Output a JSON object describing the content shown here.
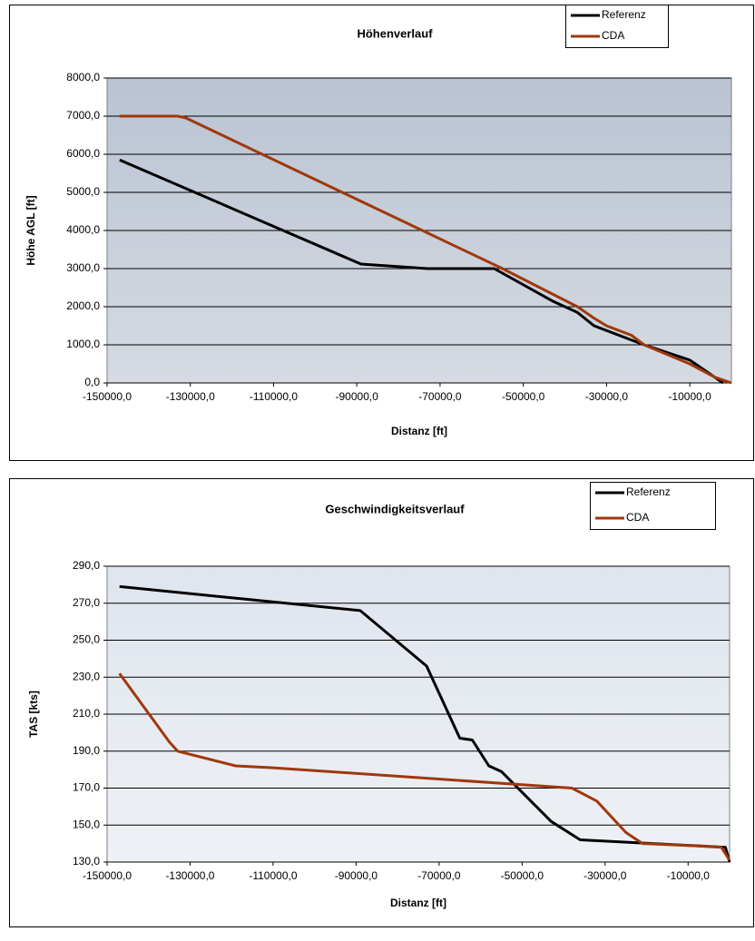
{
  "chart_data": [
    {
      "type": "line",
      "title": "Höhenverlauf",
      "x_label": "Distanz [ft]",
      "y_label": "Höhe AGL [ft]",
      "xlim": [
        -150000,
        0
      ],
      "ylim": [
        0,
        8000
      ],
      "xticks": [
        {
          "value": -150000,
          "label": "-150000,0"
        },
        {
          "value": -130000,
          "label": "-130000,0"
        },
        {
          "value": -110000,
          "label": "-110000,0"
        },
        {
          "value": -90000,
          "label": "-90000,0"
        },
        {
          "value": -70000,
          "label": "-70000,0"
        },
        {
          "value": -50000,
          "label": "-50000,0"
        },
        {
          "value": -30000,
          "label": "-30000,0"
        },
        {
          "value": -10000,
          "label": "-10000,0"
        }
      ],
      "yticks": [
        {
          "value": 0,
          "label": "0,0"
        },
        {
          "value": 1000,
          "label": "1000,0"
        },
        {
          "value": 2000,
          "label": "2000,0"
        },
        {
          "value": 3000,
          "label": "3000,0"
        },
        {
          "value": 4000,
          "label": "4000,0"
        },
        {
          "value": 5000,
          "label": "5000,0"
        },
        {
          "value": 6000,
          "label": "6000,0"
        },
        {
          "value": 7000,
          "label": "7000,0"
        },
        {
          "value": 8000,
          "label": "8000,0"
        }
      ],
      "grid": true,
      "legend": "top-right",
      "series": [
        {
          "name": "Referenz",
          "color": "#000000",
          "x": [
            -147000,
            -89000,
            -73000,
            -57000,
            -43000,
            -37000,
            -33000,
            -21000,
            -10000,
            -2000
          ],
          "values": [
            5850,
            3120,
            3000,
            3000,
            2150,
            1850,
            1500,
            1000,
            600,
            0
          ]
        },
        {
          "name": "CDA",
          "color": "#a0380c",
          "x": [
            -147000,
            -133000,
            -131000,
            -55000,
            -37000,
            -33000,
            -30000,
            -24000,
            -21000,
            -10000,
            -4000,
            0
          ],
          "values": [
            7000,
            7000,
            6950,
            3000,
            2000,
            1700,
            1500,
            1250,
            1000,
            500,
            150,
            0
          ]
        }
      ]
    },
    {
      "type": "line",
      "title": "Geschwindigkeitsverlauf",
      "x_label": "Distanz [ft]",
      "y_label": "TAS [kts]",
      "xlim": [
        -150000,
        0
      ],
      "ylim": [
        130,
        290
      ],
      "xticks": [
        {
          "value": -150000,
          "label": "-150000,0"
        },
        {
          "value": -130000,
          "label": "-130000,0"
        },
        {
          "value": -110000,
          "label": "-110000,0"
        },
        {
          "value": -90000,
          "label": "-90000,0"
        },
        {
          "value": -70000,
          "label": "-70000,0"
        },
        {
          "value": -50000,
          "label": "-50000,0"
        },
        {
          "value": -30000,
          "label": "-30000,0"
        },
        {
          "value": -10000,
          "label": "-10000,0"
        }
      ],
      "yticks": [
        {
          "value": 130,
          "label": "130,0"
        },
        {
          "value": 150,
          "label": "150,0"
        },
        {
          "value": 170,
          "label": "170,0"
        },
        {
          "value": 190,
          "label": "190,0"
        },
        {
          "value": 210,
          "label": "210,0"
        },
        {
          "value": 230,
          "label": "230,0"
        },
        {
          "value": 250,
          "label": "250,0"
        },
        {
          "value": 270,
          "label": "270,0"
        },
        {
          "value": 290,
          "label": "290,0"
        }
      ],
      "grid": true,
      "legend": "top-right",
      "series": [
        {
          "name": "Referenz",
          "color": "#000000",
          "x": [
            -147000,
            -89000,
            -73000,
            -65000,
            -62000,
            -58000,
            -55000,
            -43000,
            -36000,
            -1000,
            0
          ],
          "values": [
            279,
            266,
            236,
            197,
            196,
            182,
            179,
            152,
            142,
            138,
            130
          ]
        },
        {
          "name": "CDA",
          "color": "#a0380c",
          "x": [
            -147000,
            -135000,
            -133000,
            -119000,
            -110000,
            -38000,
            -32000,
            -25000,
            -21000,
            -10000,
            -2000,
            0
          ],
          "values": [
            232,
            195,
            190,
            182,
            181,
            170,
            163,
            146,
            140,
            139,
            138,
            131
          ]
        }
      ]
    }
  ]
}
